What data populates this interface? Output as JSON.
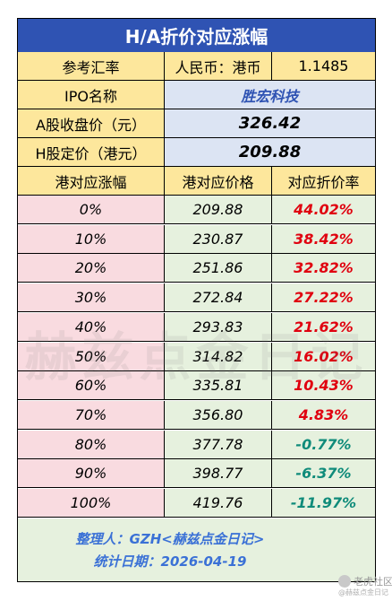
{
  "title": "H/A折价对应涨幅",
  "info": {
    "rate_label": "参考汇率",
    "rate_pair": "人民币：港币",
    "rate_value": "1.1485",
    "ipo_label": "IPO名称",
    "ipo_name": "胜宏科技",
    "a_close_label": "A股收盘价（元）",
    "a_close_value": "326.42",
    "h_price_label": "H股定价（港元）",
    "h_price_value": "209.88"
  },
  "headers": [
    "港对应涨幅",
    "港对应价格",
    "对应折价率"
  ],
  "rows": [
    {
      "rise": "0%",
      "price": "209.88",
      "discount": "44.02%",
      "sign": "pos"
    },
    {
      "rise": "10%",
      "price": "230.87",
      "discount": "38.42%",
      "sign": "pos"
    },
    {
      "rise": "20%",
      "price": "251.86",
      "discount": "32.82%",
      "sign": "pos"
    },
    {
      "rise": "30%",
      "price": "272.84",
      "discount": "27.22%",
      "sign": "pos"
    },
    {
      "rise": "40%",
      "price": "293.83",
      "discount": "21.62%",
      "sign": "pos"
    },
    {
      "rise": "50%",
      "price": "314.82",
      "discount": "16.02%",
      "sign": "pos"
    },
    {
      "rise": "60%",
      "price": "335.81",
      "discount": "10.43%",
      "sign": "pos"
    },
    {
      "rise": "70%",
      "price": "356.80",
      "discount": "4.83%",
      "sign": "pos"
    },
    {
      "rise": "80%",
      "price": "377.78",
      "discount": "-0.77%",
      "sign": "neg"
    },
    {
      "rise": "90%",
      "price": "398.77",
      "discount": "-6.37%",
      "sign": "neg"
    },
    {
      "rise": "100%",
      "price": "419.76",
      "discount": "-11.97%",
      "sign": "neg"
    }
  ],
  "footer": {
    "organizer": "整理人：GZH<赫兹点金日记>",
    "date": "统计日期：2026-04-19"
  },
  "watermark": "赫兹点金日记",
  "brand": {
    "name": "老虎社区",
    "sub": "@赫兹点金日记"
  },
  "colors": {
    "title_bg": "#2f53b3",
    "yellow": "#fde79c",
    "light_blue": "#dce4f3",
    "pink": "#f9dbe0",
    "green": "#e6f1de",
    "positive": "#e0000f",
    "negative": "#0f8b7a"
  }
}
